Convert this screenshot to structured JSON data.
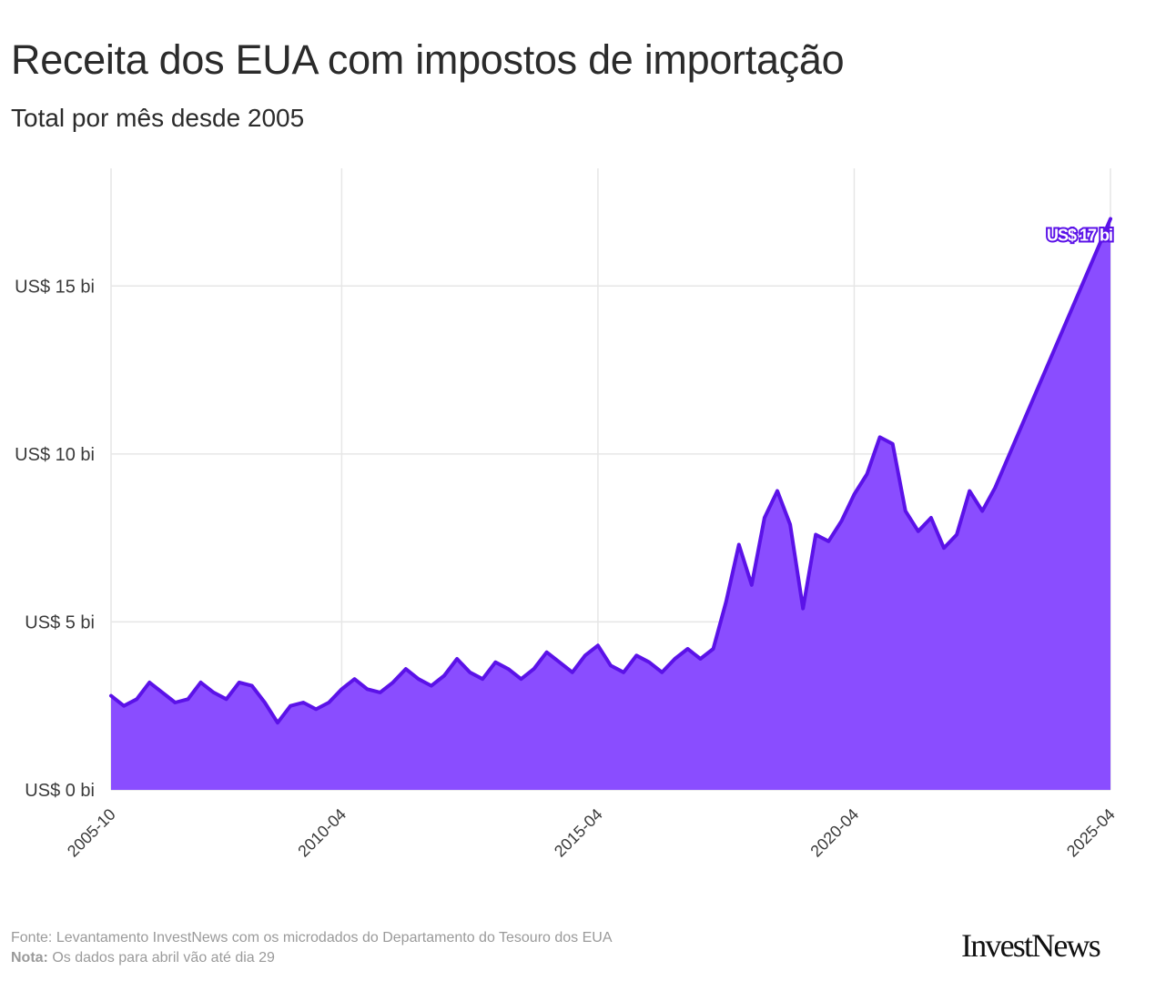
{
  "header": {
    "title": "Receita dos EUA com impostos de importação",
    "subtitle": "Total por mês desde 2005"
  },
  "footer": {
    "source_label": "Fonte:",
    "source_text": "Levantamento InvestNews com os microdados do Departamento do Tesouro dos EUA",
    "note_label": "Nota:",
    "note_text": "Os dados para abril vão até dia 29"
  },
  "brand": {
    "logo_text": "InvestNews"
  },
  "colors": {
    "line": "#5b12e8",
    "area": "#8a4dff",
    "grid": "#e6e6e6",
    "text": "#2b2b2b",
    "footer": "#9a9a9a"
  },
  "chart_data": {
    "type": "area",
    "title": "Receita dos EUA com impostos de importação",
    "subtitle": "Total por mês desde 2005",
    "xlabel": "",
    "ylabel": "",
    "x_range": [
      "2005-10",
      "2025-04"
    ],
    "ylim": [
      0,
      17.5
    ],
    "grid": true,
    "x_ticks": [
      "2005-10",
      "2010-04",
      "2015-04",
      "2020-04",
      "2025-04"
    ],
    "y_ticks": [
      {
        "value": 0,
        "label": "US$ 0 bi"
      },
      {
        "value": 5,
        "label": "US$ 5 bi"
      },
      {
        "value": 10,
        "label": "US$ 10 bi"
      },
      {
        "value": 15,
        "label": "US$ 15 bi"
      }
    ],
    "annotation": {
      "date": "2025-04",
      "value": 17,
      "label": "US$ 17 bi"
    },
    "series": [
      {
        "values": [
          [
            "2005-10",
            2.8
          ],
          [
            "2006-01",
            2.5
          ],
          [
            "2006-04",
            2.7
          ],
          [
            "2006-07",
            3.2
          ],
          [
            "2006-10",
            2.9
          ],
          [
            "2007-01",
            2.6
          ],
          [
            "2007-04",
            2.7
          ],
          [
            "2007-07",
            3.2
          ],
          [
            "2007-10",
            2.9
          ],
          [
            "2008-01",
            2.7
          ],
          [
            "2008-04",
            3.2
          ],
          [
            "2008-07",
            3.1
          ],
          [
            "2008-10",
            2.6
          ],
          [
            "2009-01",
            2.0
          ],
          [
            "2009-04",
            2.5
          ],
          [
            "2009-07",
            2.6
          ],
          [
            "2009-10",
            2.4
          ],
          [
            "2010-01",
            2.6
          ],
          [
            "2010-04",
            3.0
          ],
          [
            "2010-07",
            3.3
          ],
          [
            "2010-10",
            3.0
          ],
          [
            "2011-01",
            2.9
          ],
          [
            "2011-04",
            3.2
          ],
          [
            "2011-07",
            3.6
          ],
          [
            "2011-10",
            3.3
          ],
          [
            "2012-01",
            3.1
          ],
          [
            "2012-04",
            3.4
          ],
          [
            "2012-07",
            3.9
          ],
          [
            "2012-10",
            3.5
          ],
          [
            "2013-01",
            3.3
          ],
          [
            "2013-04",
            3.8
          ],
          [
            "2013-07",
            3.6
          ],
          [
            "2013-10",
            3.3
          ],
          [
            "2014-01",
            3.6
          ],
          [
            "2014-04",
            4.1
          ],
          [
            "2014-07",
            3.8
          ],
          [
            "2014-10",
            3.5
          ],
          [
            "2015-01",
            4.0
          ],
          [
            "2015-04",
            4.3
          ],
          [
            "2015-07",
            3.7
          ],
          [
            "2015-10",
            3.5
          ],
          [
            "2016-01",
            4.0
          ],
          [
            "2016-04",
            3.8
          ],
          [
            "2016-07",
            3.5
          ],
          [
            "2016-10",
            3.9
          ],
          [
            "2017-01",
            4.2
          ],
          [
            "2017-04",
            3.9
          ],
          [
            "2017-07",
            4.2
          ],
          [
            "2017-10",
            5.6
          ],
          [
            "2018-01",
            7.3
          ],
          [
            "2018-04",
            6.1
          ],
          [
            "2018-07",
            8.1
          ],
          [
            "2018-10",
            8.9
          ],
          [
            "2019-01",
            7.9
          ],
          [
            "2019-04",
            5.4
          ],
          [
            "2019-07",
            7.6
          ],
          [
            "2019-10",
            7.4
          ],
          [
            "2020-01",
            8.0
          ],
          [
            "2020-04",
            8.8
          ],
          [
            "2020-07",
            9.4
          ],
          [
            "2020-10",
            10.5
          ],
          [
            "2021-01",
            10.3
          ],
          [
            "2021-04",
            8.3
          ],
          [
            "2021-07",
            7.7
          ],
          [
            "2021-10",
            8.1
          ],
          [
            "2022-01",
            7.2
          ],
          [
            "2022-04",
            7.6
          ],
          [
            "2022-07",
            8.9
          ],
          [
            "2022-10",
            8.3
          ],
          [
            "2023-01",
            9.0
          ],
          [
            "2025-04",
            17.0
          ]
        ]
      }
    ]
  }
}
